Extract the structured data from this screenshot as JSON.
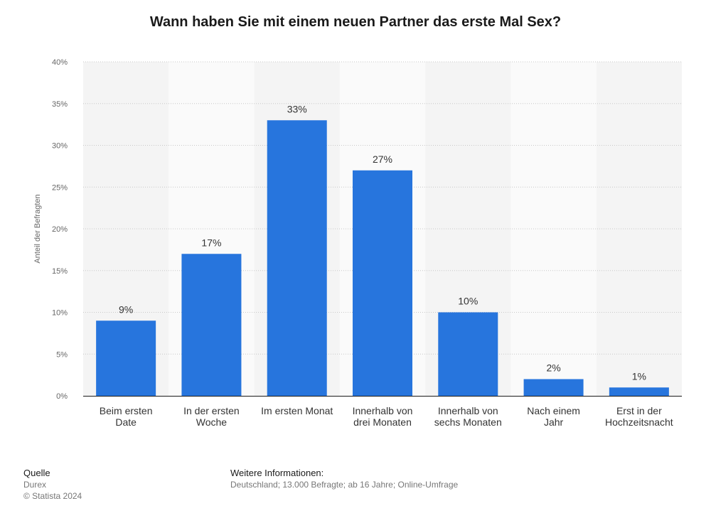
{
  "title": "Wann haben Sie mit einem neuen Partner das erste Mal Sex?",
  "chart_data": {
    "type": "bar",
    "title": "Wann haben Sie mit einem neuen Partner das erste Mal Sex?",
    "xlabel": "",
    "ylabel": "Anteil der Befragten",
    "categories": [
      [
        "Beim ersten",
        "Date"
      ],
      [
        "In der ersten",
        "Woche"
      ],
      [
        "Im ersten Monat"
      ],
      [
        "Innerhalb von",
        "drei Monaten"
      ],
      [
        "Innerhalb von",
        "sechs Monaten"
      ],
      [
        "Nach einem",
        "Jahr"
      ],
      [
        "Erst in der",
        "Hochzeitsnacht"
      ]
    ],
    "values": [
      9,
      17,
      33,
      27,
      10,
      2,
      1
    ],
    "value_labels": [
      "9%",
      "17%",
      "33%",
      "27%",
      "10%",
      "2%",
      "1%"
    ],
    "yticks": [
      0,
      5,
      10,
      15,
      20,
      25,
      30,
      35,
      40
    ],
    "ytick_labels": [
      "0%",
      "5%",
      "10%",
      "15%",
      "20%",
      "25%",
      "30%",
      "35%",
      "40%"
    ],
    "ylim": [
      0,
      40
    ],
    "grid": true,
    "bar_color": "#2775dd",
    "band_colors": [
      "#f4f4f4",
      "#fafafa"
    ]
  },
  "footer": {
    "source_heading": "Quelle",
    "source_name": "Durex",
    "copyright": "© Statista 2024",
    "info_heading": "Weitere Informationen:",
    "info_text": "Deutschland; 13.000 Befragte; ab 16 Jahre; Online-Umfrage"
  }
}
